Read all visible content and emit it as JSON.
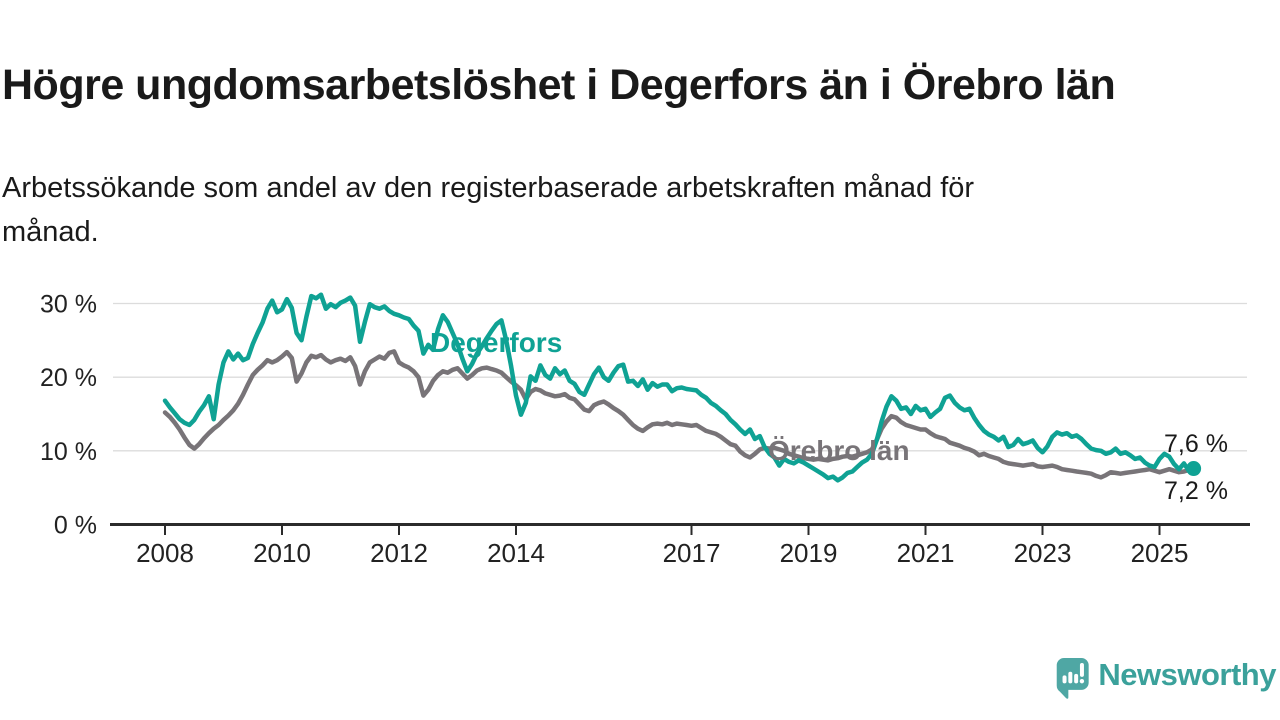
{
  "header": {
    "title": "Högre ungdomsarbetslöshet i Degerfors än i Örebro län",
    "subtitle_line1": "Arbetssökande som andel av den registerbaserade arbetskraften månad för",
    "subtitle_line2": "månad."
  },
  "chart": {
    "colors": {
      "degerfors": "#0FA294",
      "orebro": "#787478",
      "grid": "#DCDCDC",
      "axis": "#2B2B2B",
      "tick_text": "#222222",
      "end_label_text": "#1A1A1A"
    }
  },
  "chart_data": {
    "type": "line",
    "title": "Högre ungdomsarbetslöshet i Degerfors än i Örebro län",
    "subtitle": "Arbetssökande som andel av den registerbaserade arbetskraften månad för månad.",
    "x_start": "2008-01",
    "x_interval": "monthly",
    "x_end": "2025-08",
    "x_tick_years": [
      2008,
      2010,
      2012,
      2014,
      2017,
      2019,
      2021,
      2023,
      2025
    ],
    "ylim": [
      0,
      33
    ],
    "yticks": [
      {
        "value": 0,
        "label": "0 %"
      },
      {
        "value": 10,
        "label": "10 %"
      },
      {
        "value": 20,
        "label": "20 %"
      },
      {
        "value": 30,
        "label": "30 %"
      }
    ],
    "grid": true,
    "legend_position": "inline-labels",
    "series": [
      {
        "name": "Degerfors",
        "color": "#0FA294",
        "end_value": 7.6,
        "end_value_label": "7,6 %",
        "values": [
          16.8,
          15.9,
          15.1,
          14.3,
          13.8,
          13.5,
          14.2,
          15.3,
          16.2,
          17.4,
          14.3,
          19.0,
          22.0,
          23.5,
          22.4,
          23.2,
          22.3,
          22.6,
          24.5,
          26.0,
          27.4,
          29.3,
          30.4,
          28.8,
          29.2,
          30.6,
          29.4,
          26.0,
          25.0,
          28.2,
          31.0,
          30.7,
          31.2,
          29.3,
          29.9,
          29.5,
          30.1,
          30.4,
          30.8,
          29.7,
          24.8,
          27.5,
          29.9,
          29.5,
          29.3,
          29.6,
          29.0,
          28.6,
          28.4,
          28.1,
          27.9,
          27.0,
          26.3,
          23.2,
          24.4,
          23.7,
          26.5,
          28.4,
          27.5,
          26.0,
          24.5,
          22.5,
          20.8,
          21.8,
          23.2,
          24.2,
          25.3,
          26.3,
          27.2,
          27.7,
          25.0,
          21.5,
          17.5,
          14.9,
          16.5,
          20.1,
          19.5,
          21.6,
          20.3,
          19.8,
          21.2,
          20.4,
          20.9,
          19.5,
          19.1,
          18.0,
          17.6,
          19.0,
          20.4,
          21.3,
          20.0,
          19.5,
          20.6,
          21.5,
          21.7,
          19.4,
          19.5,
          18.8,
          19.7,
          18.3,
          19.2,
          18.7,
          19.0,
          19.0,
          18.1,
          18.5,
          18.6,
          18.4,
          18.3,
          18.2,
          17.6,
          17.2,
          16.5,
          16.1,
          15.5,
          15.0,
          14.2,
          13.6,
          12.9,
          12.3,
          12.9,
          11.6,
          12.0,
          10.5,
          9.6,
          9.1,
          8.0,
          8.9,
          8.5,
          8.3,
          8.7,
          8.4,
          8.0,
          7.6,
          7.2,
          6.8,
          6.3,
          6.5,
          6.0,
          6.4,
          7.0,
          7.2,
          7.8,
          8.4,
          8.8,
          9.6,
          11.5,
          14.0,
          16.0,
          17.4,
          16.8,
          15.7,
          15.9,
          15.0,
          16.1,
          15.5,
          15.7,
          14.6,
          15.2,
          15.7,
          17.2,
          17.5,
          16.5,
          15.9,
          15.5,
          15.7,
          14.5,
          13.5,
          12.7,
          12.2,
          11.9,
          11.4,
          11.9,
          10.5,
          10.8,
          11.6,
          10.9,
          11.1,
          11.4,
          10.4,
          9.8,
          10.6,
          11.9,
          12.5,
          12.2,
          12.4,
          11.9,
          12.1,
          11.6,
          10.9,
          10.3,
          10.1,
          10.0,
          9.6,
          9.8,
          10.3,
          9.6,
          9.8,
          9.4,
          8.9,
          9.1,
          8.4,
          8.0,
          7.8,
          8.9,
          9.6,
          9.2,
          8.2,
          7.5,
          8.3,
          7.3,
          7.6
        ]
      },
      {
        "name": "Örebro län",
        "color": "#787478",
        "end_value": 7.2,
        "end_value_label": "7,2 %",
        "values": [
          15.2,
          14.6,
          13.8,
          12.9,
          11.8,
          10.8,
          10.3,
          10.9,
          11.7,
          12.4,
          13.0,
          13.5,
          14.2,
          14.8,
          15.5,
          16.4,
          17.6,
          19.0,
          20.3,
          21.0,
          21.6,
          22.3,
          22.0,
          22.3,
          22.8,
          23.4,
          22.6,
          19.4,
          20.5,
          22.0,
          22.9,
          22.7,
          23.0,
          22.4,
          22.0,
          22.3,
          22.5,
          22.2,
          22.7,
          21.5,
          19.0,
          20.8,
          22.0,
          22.4,
          22.8,
          22.5,
          23.3,
          23.5,
          22.0,
          21.6,
          21.3,
          20.8,
          20.0,
          17.5,
          18.3,
          19.5,
          20.3,
          20.8,
          20.6,
          21.0,
          21.2,
          20.5,
          19.8,
          20.3,
          20.9,
          21.2,
          21.3,
          21.1,
          20.9,
          20.6,
          20.0,
          19.4,
          18.9,
          18.3,
          17.0,
          18.0,
          18.4,
          18.2,
          17.8,
          17.6,
          17.4,
          17.5,
          17.7,
          17.2,
          17.0,
          16.3,
          15.6,
          15.4,
          16.2,
          16.5,
          16.7,
          16.3,
          15.8,
          15.4,
          14.9,
          14.2,
          13.5,
          13.0,
          12.7,
          13.2,
          13.6,
          13.7,
          13.6,
          13.8,
          13.5,
          13.7,
          13.6,
          13.5,
          13.4,
          13.5,
          13.1,
          12.7,
          12.5,
          12.3,
          11.9,
          11.4,
          10.9,
          10.7,
          9.9,
          9.4,
          9.1,
          9.6,
          10.2,
          10.4,
          10.3,
          10.4,
          10.2,
          10.0,
          9.6,
          9.4,
          9.2,
          9.0,
          8.9,
          8.8,
          8.9,
          8.8,
          8.7,
          8.9,
          9.0,
          9.2,
          9.3,
          9.2,
          9.4,
          9.6,
          9.8,
          10.2,
          11.5,
          13.0,
          14.0,
          14.7,
          14.5,
          13.9,
          13.5,
          13.3,
          13.1,
          12.9,
          12.9,
          12.4,
          12.0,
          11.8,
          11.6,
          11.1,
          10.9,
          10.7,
          10.4,
          10.2,
          9.9,
          9.4,
          9.6,
          9.3,
          9.1,
          8.9,
          8.5,
          8.3,
          8.2,
          8.1,
          8.0,
          8.1,
          8.2,
          7.9,
          7.8,
          7.9,
          8.0,
          7.8,
          7.5,
          7.4,
          7.3,
          7.2,
          7.1,
          7.0,
          6.9,
          6.6,
          6.4,
          6.7,
          7.1,
          7.0,
          6.9,
          7.0,
          7.1,
          7.2,
          7.3,
          7.4,
          7.5,
          7.3,
          7.1,
          7.3,
          7.5,
          7.3,
          7.1,
          7.2,
          7.4,
          7.2
        ]
      }
    ]
  },
  "logo": {
    "text": "Newsworthy",
    "icon": "newsworthy-bar-chart-bubble-icon",
    "color_icon": "#4FA7A4",
    "color_text": "#3BA19B"
  }
}
